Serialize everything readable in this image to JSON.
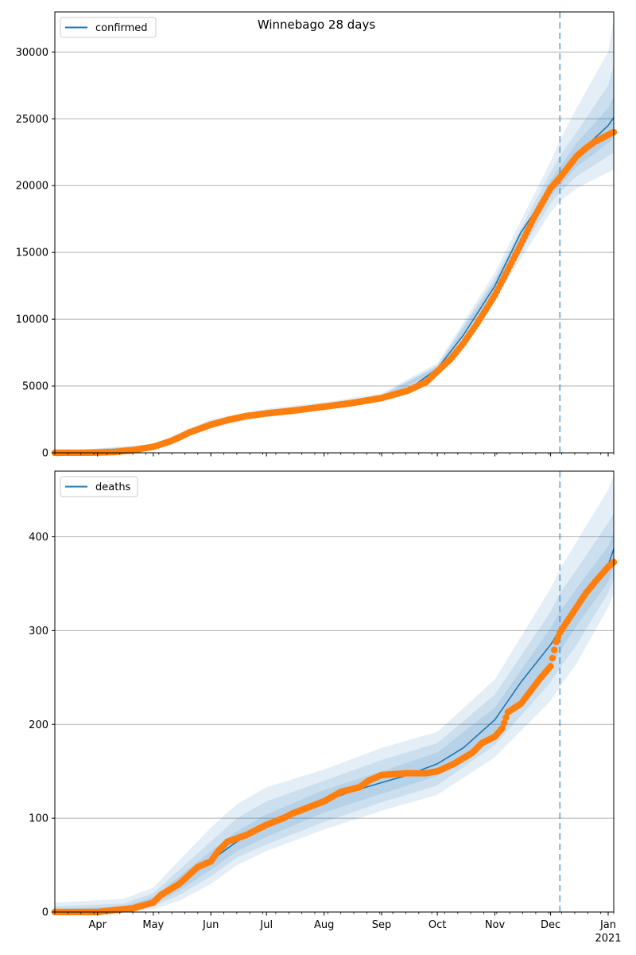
{
  "title": "Winnebago 28 days",
  "colors": {
    "model": "#1f77b4",
    "observed": "#ff7f0e",
    "grid": "#b0b0b0",
    "forecast_line": "#1f77b4"
  },
  "x_axis": {
    "start": "2020-03-09",
    "end": "2021-01-04",
    "month_ticks": [
      {
        "date": "2020-04-01",
        "label": "Apr"
      },
      {
        "date": "2020-05-01",
        "label": "May"
      },
      {
        "date": "2020-06-01",
        "label": "Jun"
      },
      {
        "date": "2020-07-01",
        "label": "Jul"
      },
      {
        "date": "2020-08-01",
        "label": "Aug"
      },
      {
        "date": "2020-09-01",
        "label": "Sep"
      },
      {
        "date": "2020-10-01",
        "label": "Oct"
      },
      {
        "date": "2020-11-01",
        "label": "Nov"
      },
      {
        "date": "2020-12-01",
        "label": "Dec"
      },
      {
        "date": "2021-01-01",
        "label": "Jan"
      }
    ],
    "year_label": "2021",
    "forecast_start": "2020-12-06"
  },
  "chart_data": [
    {
      "type": "line",
      "legend": "confirmed",
      "legend_position": "top-left",
      "grid": "horizontal",
      "ylim": [
        0,
        33000
      ],
      "yticks": [
        0,
        5000,
        10000,
        15000,
        20000,
        25000,
        30000
      ],
      "model": [
        [
          "2020-03-09",
          0
        ],
        [
          "2020-04-01",
          40
        ],
        [
          "2020-04-15",
          150
        ],
        [
          "2020-05-01",
          500
        ],
        [
          "2020-05-15",
          1300
        ],
        [
          "2020-06-01",
          2200
        ],
        [
          "2020-06-15",
          2650
        ],
        [
          "2020-07-01",
          3000
        ],
        [
          "2020-07-15",
          3200
        ],
        [
          "2020-08-01",
          3500
        ],
        [
          "2020-08-15",
          3750
        ],
        [
          "2020-09-01",
          4150
        ],
        [
          "2020-09-15",
          4700
        ],
        [
          "2020-10-01",
          6300
        ],
        [
          "2020-10-15",
          8800
        ],
        [
          "2020-11-01",
          12500
        ],
        [
          "2020-11-15",
          16500
        ],
        [
          "2020-12-01",
          19800
        ],
        [
          "2020-12-06",
          20700
        ],
        [
          "2020-12-15",
          22300
        ],
        [
          "2021-01-01",
          24500
        ],
        [
          "2021-01-04",
          25100
        ]
      ],
      "bands": [
        {
          "opacity": 0.12,
          "points": [
            [
              "2020-03-09",
              0,
              100
            ],
            [
              "2020-05-01",
              350,
              650
            ],
            [
              "2020-06-01",
              1900,
              2500
            ],
            [
              "2020-07-01",
              2700,
              3300
            ],
            [
              "2020-08-01",
              3200,
              3800
            ],
            [
              "2020-09-01",
              3850,
              4450
            ],
            [
              "2020-10-01",
              5900,
              6700
            ],
            [
              "2020-11-01",
              11500,
              13500
            ],
            [
              "2020-12-01",
              18000,
              21800
            ],
            [
              "2020-12-06",
              18800,
              23400
            ],
            [
              "2020-12-15",
              19800,
              25800
            ],
            [
              "2021-01-01",
              21000,
              30000
            ],
            [
              "2021-01-04",
              21200,
              32500
            ]
          ]
        },
        {
          "opacity": 0.12,
          "points": [
            [
              "2020-03-09",
              0,
              80
            ],
            [
              "2020-05-01",
              400,
              600
            ],
            [
              "2020-06-01",
              2000,
              2400
            ],
            [
              "2020-07-01",
              2800,
              3200
            ],
            [
              "2020-08-01",
              3300,
              3700
            ],
            [
              "2020-09-01",
              3950,
              4350
            ],
            [
              "2020-10-01",
              6050,
              6550
            ],
            [
              "2020-11-01",
              11900,
              13100
            ],
            [
              "2020-12-01",
              18700,
              21000
            ],
            [
              "2020-12-06",
              19500,
              22200
            ],
            [
              "2020-12-15",
              20700,
              24000
            ],
            [
              "2021-01-01",
              22200,
              27500
            ],
            [
              "2021-01-04",
              22500,
              29000
            ]
          ]
        },
        {
          "opacity": 0.12,
          "points": [
            [
              "2020-03-09",
              0,
              60
            ],
            [
              "2020-05-01",
              440,
              560
            ],
            [
              "2020-06-01",
              2080,
              2320
            ],
            [
              "2020-07-01",
              2880,
              3120
            ],
            [
              "2020-08-01",
              3380,
              3620
            ],
            [
              "2020-09-01",
              4030,
              4270
            ],
            [
              "2020-10-01",
              6150,
              6450
            ],
            [
              "2020-11-01",
              12150,
              12850
            ],
            [
              "2020-12-01",
              19200,
              20400
            ],
            [
              "2020-12-06",
              20000,
              21400
            ],
            [
              "2020-12-15",
              21400,
              23200
            ],
            [
              "2021-01-01",
              23200,
              25800
            ],
            [
              "2021-01-04",
              23600,
              26700
            ]
          ]
        }
      ],
      "observed": [
        [
          "2020-03-09",
          0
        ],
        [
          "2020-03-25",
          5
        ],
        [
          "2020-04-01",
          20
        ],
        [
          "2020-04-10",
          60
        ],
        [
          "2020-04-20",
          200
        ],
        [
          "2020-05-01",
          450
        ],
        [
          "2020-05-10",
          850
        ],
        [
          "2020-05-15",
          1150
        ],
        [
          "2020-05-20",
          1500
        ],
        [
          "2020-06-01",
          2100
        ],
        [
          "2020-06-10",
          2450
        ],
        [
          "2020-06-20",
          2750
        ],
        [
          "2020-07-01",
          2950
        ],
        [
          "2020-07-15",
          3150
        ],
        [
          "2020-08-01",
          3450
        ],
        [
          "2020-08-15",
          3700
        ],
        [
          "2020-09-01",
          4100
        ],
        [
          "2020-09-15",
          4650
        ],
        [
          "2020-09-25",
          5300
        ],
        [
          "2020-10-01",
          6100
        ],
        [
          "2020-10-08",
          7000
        ],
        [
          "2020-10-15",
          8200
        ],
        [
          "2020-10-22",
          9600
        ],
        [
          "2020-11-01",
          11800
        ],
        [
          "2020-11-08",
          13700
        ],
        [
          "2020-11-15",
          15600
        ],
        [
          "2020-11-22",
          17600
        ],
        [
          "2020-12-01",
          19800
        ],
        [
          "2020-12-06",
          20600
        ],
        [
          "2020-12-10",
          21300
        ],
        [
          "2020-12-15",
          22200
        ],
        [
          "2020-12-20",
          22800
        ],
        [
          "2020-12-25",
          23300
        ],
        [
          "2021-01-01",
          23800
        ],
        [
          "2021-01-04",
          24000
        ]
      ]
    },
    {
      "type": "line",
      "legend": "deaths",
      "legend_position": "top-left",
      "grid": "horizontal",
      "ylim": [
        0,
        470
      ],
      "yticks": [
        0,
        100,
        200,
        300,
        400
      ],
      "model": [
        [
          "2020-03-09",
          0
        ],
        [
          "2020-04-01",
          1
        ],
        [
          "2020-04-15",
          4
        ],
        [
          "2020-05-01",
          12
        ],
        [
          "2020-05-15",
          30
        ],
        [
          "2020-06-01",
          55
        ],
        [
          "2020-06-15",
          75
        ],
        [
          "2020-07-01",
          92
        ],
        [
          "2020-07-15",
          105
        ],
        [
          "2020-08-01",
          118
        ],
        [
          "2020-08-15",
          128
        ],
        [
          "2020-09-01",
          138
        ],
        [
          "2020-09-15",
          146
        ],
        [
          "2020-10-01",
          158
        ],
        [
          "2020-10-15",
          175
        ],
        [
          "2020-11-01",
          205
        ],
        [
          "2020-11-15",
          245
        ],
        [
          "2020-12-01",
          285
        ],
        [
          "2020-12-06",
          300
        ],
        [
          "2020-12-15",
          325
        ],
        [
          "2021-01-01",
          370
        ],
        [
          "2021-01-04",
          387
        ]
      ],
      "bands": [
        {
          "opacity": 0.12,
          "points": [
            [
              "2020-03-09",
              0,
              10
            ],
            [
              "2020-04-15",
              0,
              14
            ],
            [
              "2020-05-01",
              3,
              26
            ],
            [
              "2020-05-15",
              12,
              55
            ],
            [
              "2020-06-01",
              30,
              90
            ],
            [
              "2020-06-15",
              50,
              115
            ],
            [
              "2020-07-01",
              65,
              133
            ],
            [
              "2020-08-01",
              88,
              152
            ],
            [
              "2020-09-01",
              108,
              175
            ],
            [
              "2020-10-01",
              125,
              192
            ],
            [
              "2020-11-01",
              165,
              248
            ],
            [
              "2020-12-01",
              225,
              345
            ],
            [
              "2020-12-06",
              240,
              365
            ],
            [
              "2020-12-15",
              265,
              395
            ],
            [
              "2021-01-01",
              325,
              450
            ],
            [
              "2021-01-04",
              340,
              465
            ]
          ]
        },
        {
          "opacity": 0.12,
          "points": [
            [
              "2020-03-09",
              0,
              6
            ],
            [
              "2020-04-15",
              1,
              9
            ],
            [
              "2020-05-01",
              6,
              20
            ],
            [
              "2020-05-15",
              18,
              45
            ],
            [
              "2020-06-01",
              38,
              75
            ],
            [
              "2020-06-15",
              58,
              100
            ],
            [
              "2020-07-01",
              72,
              118
            ],
            [
              "2020-08-01",
              96,
              140
            ],
            [
              "2020-09-01",
              117,
              162
            ],
            [
              "2020-10-01",
              135,
              180
            ],
            [
              "2020-11-01",
              178,
              232
            ],
            [
              "2020-12-01",
              245,
              320
            ],
            [
              "2020-12-06",
              260,
              340
            ],
            [
              "2020-12-15",
              285,
              365
            ],
            [
              "2021-01-01",
              340,
              415
            ],
            [
              "2021-01-04",
              355,
              425
            ]
          ]
        },
        {
          "opacity": 0.12,
          "points": [
            [
              "2020-03-09",
              0,
              3
            ],
            [
              "2020-04-15",
              2,
              6
            ],
            [
              "2020-05-01",
              8,
              16
            ],
            [
              "2020-05-15",
              23,
              38
            ],
            [
              "2020-06-01",
              45,
              65
            ],
            [
              "2020-06-15",
              65,
              86
            ],
            [
              "2020-07-01",
              80,
              104
            ],
            [
              "2020-08-01",
              106,
              130
            ],
            [
              "2020-09-01",
              126,
              150
            ],
            [
              "2020-10-01",
              145,
              170
            ],
            [
              "2020-11-01",
              190,
              218
            ],
            [
              "2020-12-01",
              262,
              303
            ],
            [
              "2020-12-06",
              278,
              320
            ],
            [
              "2020-12-15",
              305,
              345
            ],
            [
              "2021-01-01",
              352,
              390
            ],
            [
              "2021-01-04",
              368,
              405
            ]
          ]
        }
      ],
      "observed": [
        [
          "2020-03-09",
          0
        ],
        [
          "2020-04-01",
          0
        ],
        [
          "2020-04-10",
          2
        ],
        [
          "2020-04-20",
          4
        ],
        [
          "2020-05-01",
          10
        ],
        [
          "2020-05-05",
          18
        ],
        [
          "2020-05-15",
          30
        ],
        [
          "2020-05-25",
          48
        ],
        [
          "2020-06-01",
          54
        ],
        [
          "2020-06-05",
          65
        ],
        [
          "2020-06-10",
          75
        ],
        [
          "2020-06-20",
          82
        ],
        [
          "2020-07-01",
          93
        ],
        [
          "2020-07-10",
          100
        ],
        [
          "2020-07-15",
          105
        ],
        [
          "2020-08-01",
          118
        ],
        [
          "2020-08-10",
          128
        ],
        [
          "2020-08-20",
          133
        ],
        [
          "2020-08-25",
          140
        ],
        [
          "2020-09-01",
          146
        ],
        [
          "2020-09-15",
          148
        ],
        [
          "2020-09-25",
          148
        ],
        [
          "2020-10-01",
          150
        ],
        [
          "2020-10-10",
          158
        ],
        [
          "2020-10-20",
          170
        ],
        [
          "2020-10-25",
          180
        ],
        [
          "2020-11-01",
          187
        ],
        [
          "2020-11-05",
          196
        ],
        [
          "2020-11-08",
          213
        ],
        [
          "2020-11-15",
          222
        ],
        [
          "2020-11-20",
          235
        ],
        [
          "2020-11-25",
          248
        ],
        [
          "2020-12-01",
          262
        ],
        [
          "2020-12-04",
          288
        ],
        [
          "2020-12-06",
          298
        ],
        [
          "2020-12-10",
          310
        ],
        [
          "2020-12-15",
          325
        ],
        [
          "2020-12-20",
          340
        ],
        [
          "2020-12-25",
          352
        ],
        [
          "2021-01-01",
          368
        ],
        [
          "2021-01-04",
          373
        ]
      ]
    }
  ]
}
